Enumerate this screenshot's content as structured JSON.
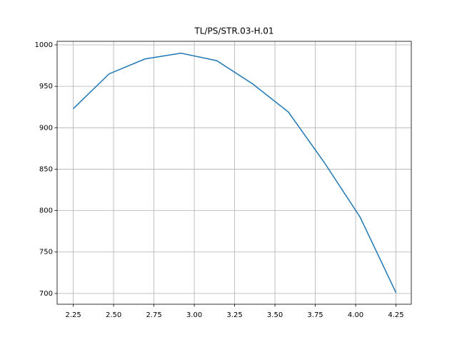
{
  "chart_data": {
    "type": "line",
    "title": "TL/PS/STR.03-H.01",
    "x": [
      2.25,
      2.472,
      2.694,
      2.917,
      3.139,
      3.361,
      3.583,
      3.806,
      4.028,
      4.25
    ],
    "series": [
      {
        "color": "#1f77b4",
        "values": [
          923,
          965,
          983,
          990,
          981,
          953,
          919,
          858,
          792,
          701
        ]
      }
    ],
    "xlim": [
      2.15,
      4.345
    ],
    "ylim": [
      687,
      1004.3
    ],
    "xticks": [
      {
        "value": 2.25,
        "label": "2.25"
      },
      {
        "value": 2.5,
        "label": "2.50"
      },
      {
        "value": 2.75,
        "label": "2.75"
      },
      {
        "value": 3.0,
        "label": "3.00"
      },
      {
        "value": 3.25,
        "label": "3.25"
      },
      {
        "value": 3.5,
        "label": "3.50"
      },
      {
        "value": 3.75,
        "label": "3.75"
      },
      {
        "value": 4.0,
        "label": "4.00"
      },
      {
        "value": 4.25,
        "label": "4.25"
      }
    ],
    "yticks": [
      700,
      750,
      800,
      850,
      900,
      950,
      1000
    ],
    "grid": true
  }
}
